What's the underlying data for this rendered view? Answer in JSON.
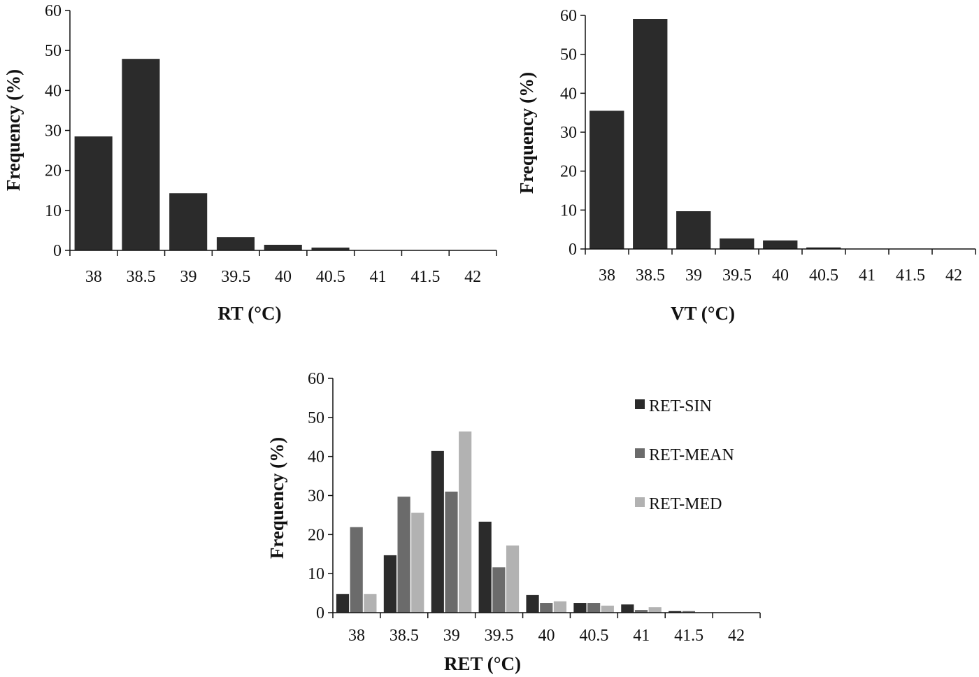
{
  "chart_data": [
    {
      "type": "bar",
      "xlabel": "RT (°C)",
      "ylabel": "Frequency (%)",
      "categories": [
        "38",
        "38.5",
        "39",
        "39.5",
        "40",
        "40.5",
        "41",
        "41.5",
        "42"
      ],
      "values": [
        28.5,
        47.9,
        14.3,
        3.3,
        1.4,
        0.7,
        0,
        0,
        0
      ],
      "ylim": [
        0,
        60
      ],
      "yticks": [
        0,
        10,
        20,
        30,
        40,
        50,
        60
      ],
      "grid": false,
      "colors": [
        "#2b2b2b"
      ]
    },
    {
      "type": "bar",
      "xlabel": "VT (°C)",
      "ylabel": "Frequency (%)",
      "categories": [
        "38",
        "38.5",
        "39",
        "39.5",
        "40",
        "40.5",
        "41",
        "41.5",
        "42"
      ],
      "values": [
        35.5,
        59.1,
        9.7,
        2.7,
        2.2,
        0.4,
        0,
        0,
        0
      ],
      "ylim": [
        0,
        60
      ],
      "yticks": [
        0,
        10,
        20,
        30,
        40,
        50,
        60
      ],
      "grid": false,
      "colors": [
        "#2b2b2b"
      ]
    },
    {
      "type": "bar",
      "xlabel": "RET (°C)",
      "ylabel": "Frequency (%)",
      "categories": [
        "38",
        "38.5",
        "39",
        "39.5",
        "40",
        "40.5",
        "41",
        "41.5",
        "42"
      ],
      "series": [
        {
          "name": "RET-SIN",
          "values": [
            4.8,
            14.7,
            41.4,
            23.3,
            4.5,
            2.5,
            2.1,
            0.4,
            0
          ],
          "color": "#2b2b2b"
        },
        {
          "name": "RET-MEAN",
          "values": [
            21.9,
            29.7,
            31.0,
            11.6,
            2.5,
            2.5,
            0.7,
            0.4,
            0
          ],
          "color": "#6b6b6b"
        },
        {
          "name": "RET-MED",
          "values": [
            4.8,
            25.6,
            46.4,
            17.2,
            2.9,
            1.8,
            1.4,
            0.1,
            0
          ],
          "color": "#b2b2b2"
        }
      ],
      "ylim": [
        0,
        60
      ],
      "yticks": [
        0,
        10,
        20,
        30,
        40,
        50,
        60
      ],
      "grid": false,
      "legend": "right"
    }
  ]
}
